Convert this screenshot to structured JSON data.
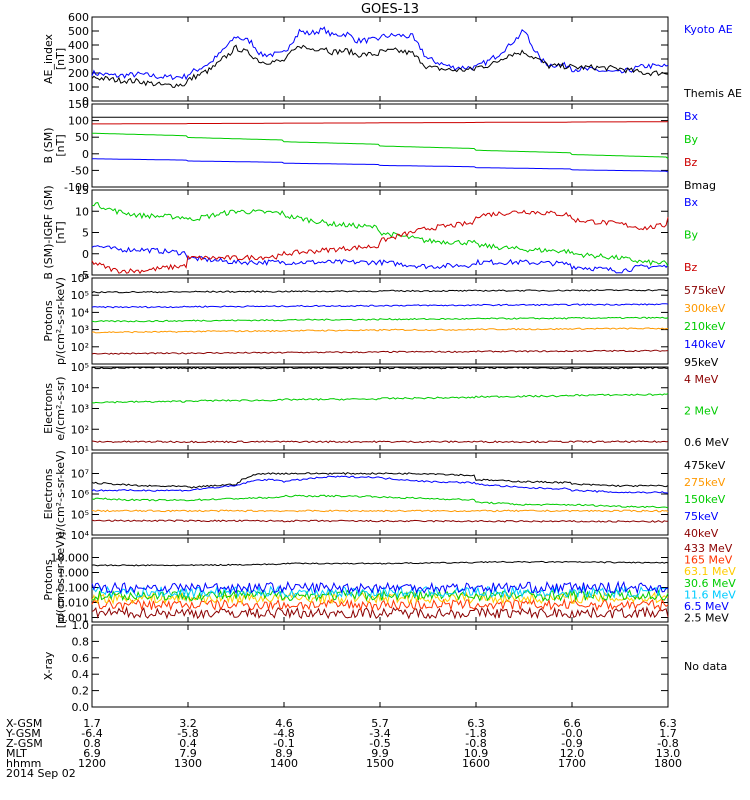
{
  "title": "GOES-13",
  "chart_data": [
    {
      "type": "line",
      "ylabel": [
        "AE_index",
        "[nT]"
      ],
      "ylim": [
        0,
        600
      ],
      "yscale": "linear",
      "yticks": [
        0,
        100,
        200,
        300,
        400,
        500,
        600
      ],
      "ytick_labels": [
        "0",
        "100",
        "200",
        "300",
        "400",
        "500",
        "600"
      ],
      "series": [
        {
          "name": "Kyoto AE",
          "color": "#0000ff",
          "x": [
            1200,
            1215,
            1230,
            1245,
            1300,
            1315,
            1330,
            1340,
            1345,
            1400,
            1410,
            1415,
            1425,
            1430,
            1440,
            1445,
            1500,
            1510,
            1520,
            1530,
            1545,
            1600,
            1610,
            1620,
            1630,
            1640,
            1645,
            1700,
            1715,
            1730,
            1745,
            1800
          ],
          "y": [
            200,
            180,
            190,
            170,
            190,
            280,
            460,
            420,
            330,
            350,
            500,
            480,
            510,
            470,
            480,
            430,
            460,
            470,
            460,
            300,
            240,
            240,
            300,
            390,
            500,
            300,
            260,
            230,
            220,
            200,
            250,
            240
          ]
        },
        {
          "name": "Themis AE",
          "color": "#000000",
          "x": [
            1200,
            1215,
            1230,
            1245,
            1300,
            1315,
            1330,
            1340,
            1345,
            1400,
            1410,
            1415,
            1425,
            1430,
            1440,
            1445,
            1500,
            1510,
            1520,
            1530,
            1545,
            1600,
            1610,
            1620,
            1630,
            1640,
            1645,
            1700,
            1715,
            1730,
            1745,
            1800
          ],
          "y": [
            170,
            150,
            140,
            110,
            150,
            230,
            380,
            330,
            280,
            290,
            400,
            370,
            380,
            350,
            360,
            330,
            350,
            360,
            340,
            240,
            220,
            240,
            260,
            330,
            350,
            290,
            250,
            240,
            240,
            230,
            200,
            200
          ]
        }
      ]
    },
    {
      "type": "line",
      "ylabel": [
        "B (SM)",
        "[nT]"
      ],
      "ylim": [
        -100,
        150
      ],
      "yscale": "linear",
      "yticks": [
        -100,
        -50,
        0,
        50,
        100,
        150
      ],
      "ytick_labels": [
        "-100",
        "-50",
        "0",
        "50",
        "100",
        "150"
      ],
      "series": [
        {
          "name": "Bx",
          "color": "#0000ff",
          "x": [
            1200,
            1800
          ],
          "y": [
            -15,
            -55
          ]
        },
        {
          "name": "By",
          "color": "#00cc00",
          "x": [
            1200,
            1800
          ],
          "y": [
            62,
            -15
          ]
        },
        {
          "name": "Bz",
          "color": "#cc0000",
          "x": [
            1200,
            1800
          ],
          "y": [
            90,
            97
          ]
        },
        {
          "name": "Bmag",
          "color": "#000000",
          "x": [
            1200,
            1800
          ],
          "y": [
            110,
            110
          ]
        }
      ]
    },
    {
      "type": "line",
      "ylabel": [
        "B (SM)-IGRF (SM)",
        "[nT]"
      ],
      "ylim": [
        -5,
        15
      ],
      "yscale": "linear",
      "yticks": [
        -5,
        0,
        5,
        10,
        15
      ],
      "ytick_labels": [
        "-5",
        "0",
        "5",
        "10",
        "15"
      ],
      "series": [
        {
          "name": "Bx",
          "color": "#0000ff",
          "x": [
            1200,
            1215,
            1230,
            1300,
            1330,
            1400,
            1430,
            1500,
            1530,
            1600,
            1630,
            1700,
            1730,
            1745,
            1800
          ],
          "y": [
            2,
            1,
            1,
            -1,
            -2,
            -2,
            -2,
            -2,
            -3,
            -2,
            -2,
            -3,
            -4,
            -3,
            -3
          ]
        },
        {
          "name": "By",
          "color": "#00cc00",
          "x": [
            1200,
            1215,
            1230,
            1300,
            1330,
            1400,
            1430,
            1500,
            1530,
            1600,
            1630,
            1700,
            1730,
            1745,
            1800
          ],
          "y": [
            12,
            10,
            9,
            8,
            10,
            9,
            7,
            5,
            3,
            2,
            1,
            0,
            -1,
            -2,
            -3
          ]
        },
        {
          "name": "Bz",
          "color": "#cc0000",
          "x": [
            1200,
            1215,
            1230,
            1300,
            1330,
            1400,
            1430,
            1500,
            1530,
            1600,
            1630,
            1700,
            1730,
            1745,
            1800
          ],
          "y": [
            -2,
            -4,
            -4,
            -1,
            -1,
            0,
            1,
            3,
            6,
            9,
            10,
            8,
            7,
            6,
            9
          ]
        }
      ]
    },
    {
      "type": "line",
      "ylabel": [
        "Protons",
        "p/(cm²-s-sr-keV)"
      ],
      "ylim": [
        10,
        1000000
      ],
      "yscale": "log",
      "yticks": [
        100,
        1000,
        10000,
        100000,
        1000000
      ],
      "ytick_labels": [
        "10²",
        "10³",
        "10⁴",
        "10⁵",
        "10⁶"
      ],
      "series": [
        {
          "name": "575keV",
          "color": "#8b0000",
          "x": [
            1200,
            1800
          ],
          "y": [
            40,
            60
          ]
        },
        {
          "name": "300keV",
          "color": "#ff9900",
          "x": [
            1200,
            1800
          ],
          "y": [
            700,
            1200
          ]
        },
        {
          "name": "210keV",
          "color": "#00cc00",
          "x": [
            1200,
            1800
          ],
          "y": [
            3000,
            5000
          ]
        },
        {
          "name": "140keV",
          "color": "#0000ff",
          "x": [
            1200,
            1800
          ],
          "y": [
            20000,
            30000
          ]
        },
        {
          "name": "95keV",
          "color": "#000000",
          "x": [
            1200,
            1800
          ],
          "y": [
            150000,
            200000
          ]
        }
      ]
    },
    {
      "type": "line",
      "ylabel": [
        "Electrons",
        "e/(cm²-s-sr)"
      ],
      "ylim": [
        10,
        100000
      ],
      "yscale": "log",
      "yticks": [
        10,
        100,
        1000,
        10000,
        100000
      ],
      "ytick_labels": [
        "10¹",
        "10²",
        "10³",
        "10⁴",
        "10⁵"
      ],
      "series": [
        {
          "name": "4 MeV",
          "color": "#8b0000",
          "x": [
            1200,
            1800
          ],
          "y": [
            25,
            25
          ]
        },
        {
          "name": "2 MeV",
          "color": "#00cc00",
          "x": [
            1200,
            1500,
            1800
          ],
          "y": [
            2000,
            3000,
            5000
          ]
        },
        {
          "name": "0.6 MeV",
          "color": "#000000",
          "x": [
            1200,
            1800
          ],
          "y": [
            90000,
            90000
          ]
        }
      ]
    },
    {
      "type": "line",
      "ylabel": [
        "Electrons",
        "e/(cm²-s-sr-keV)"
      ],
      "ylim": [
        10000,
        100000000
      ],
      "yscale": "log",
      "yticks": [
        10000,
        100000,
        1000000,
        10000000
      ],
      "ytick_labels": [
        "10⁴",
        "10⁵",
        "10⁶",
        "10⁷"
      ],
      "series": [
        {
          "name": "475keV",
          "color": "#000000",
          "x": [
            1200,
            1230,
            1300,
            1330,
            1345,
            1400,
            1430,
            1500,
            1530,
            1600,
            1630,
            1700,
            1730,
            1800
          ],
          "y": [
            3500000,
            2500000,
            2000000,
            3000000,
            10000000,
            10000000,
            10000000,
            10000000,
            10000000,
            5000000,
            4000000,
            3000000,
            2500000,
            2500000
          ]
        },
        {
          "name": "275keV",
          "color": "#ff9900",
          "x": [
            1200,
            1800
          ],
          "y": [
            150000,
            150000
          ]
        },
        {
          "name": "150keV",
          "color": "#00cc00",
          "x": [
            1200,
            1230,
            1300,
            1330,
            1400,
            1430,
            1500,
            1530,
            1600,
            1630,
            1700,
            1730,
            1800
          ],
          "y": [
            600000,
            500000,
            500000,
            600000,
            800000,
            800000,
            700000,
            600000,
            400000,
            300000,
            300000,
            250000,
            200000
          ]
        },
        {
          "name": "75keV",
          "color": "#0000ff",
          "x": [
            1200,
            1230,
            1300,
            1330,
            1345,
            1400,
            1430,
            1500,
            1530,
            1600,
            1630,
            1700,
            1730,
            1800
          ],
          "y": [
            1500000,
            1500000,
            1500000,
            2500000,
            5000000,
            4000000,
            7000000,
            6000000,
            4000000,
            3000000,
            2000000,
            1500000,
            1200000,
            1200000
          ]
        },
        {
          "name": "40keV",
          "color": "#8b0000",
          "x": [
            1200,
            1800
          ],
          "y": [
            50000,
            45000
          ]
        }
      ]
    },
    {
      "type": "line",
      "ylabel": [
        "Protons",
        "[p/(cm²-s-sr-keV)]"
      ],
      "ylim": [
        0.0005,
        200
      ],
      "yscale": "log",
      "yticks": [
        0.001,
        0.01,
        0.1,
        1,
        10
      ],
      "ytick_labels": [
        "0.001",
        "0.010",
        "0.100",
        "1.000",
        "10.000"
      ],
      "series": [
        {
          "name": "433 MeV",
          "color": "#8b0000",
          "x": [
            1200,
            1800
          ],
          "y": [
            0.002,
            0.002
          ]
        },
        {
          "name": "165 MeV",
          "color": "#ff3300",
          "x": [
            1200,
            1800
          ],
          "y": [
            0.007,
            0.007
          ]
        },
        {
          "name": "63.1 MeV",
          "color": "#ffcc00",
          "x": [
            1200,
            1800
          ],
          "y": [
            0.02,
            0.02
          ]
        },
        {
          "name": "30.6 MeV",
          "color": "#00cc00",
          "x": [
            1200,
            1800
          ],
          "y": [
            0.03,
            0.03
          ]
        },
        {
          "name": "11.6 MeV",
          "color": "#00ccff",
          "x": [
            1200,
            1800
          ],
          "y": [
            0.05,
            0.05
          ]
        },
        {
          "name": "6.5 MeV",
          "color": "#0000ff",
          "x": [
            1200,
            1800
          ],
          "y": [
            0.1,
            0.1
          ]
        },
        {
          "name": "2.5 MeV",
          "color": "#000000",
          "x": [
            1200,
            1300,
            1400,
            1500,
            1600,
            1700,
            1800
          ],
          "y": [
            3,
            3,
            4,
            4,
            5,
            5,
            4
          ]
        }
      ]
    },
    {
      "type": "line",
      "ylabel": [
        "X-ray",
        ""
      ],
      "ylim": [
        0,
        1
      ],
      "yscale": "linear",
      "yticks": [
        0,
        0.2,
        0.4,
        0.6,
        0.8,
        1.0
      ],
      "ytick_labels": [
        "0.0",
        "0.2",
        "0.4",
        "0.6",
        "0.8",
        "1.0"
      ],
      "series": [],
      "note": "No data"
    }
  ],
  "axis": {
    "xlim": [
      1200,
      1800
    ],
    "xticks": [
      1200,
      1300,
      1400,
      1500,
      1600,
      1700,
      1800
    ],
    "rows": [
      {
        "label": "X-GSM",
        "values": [
          "1.7",
          "3.2",
          "4.6",
          "5.7",
          "6.3",
          "6.6",
          "6.3"
        ]
      },
      {
        "label": "Y-GSM",
        "values": [
          "-6.4",
          "-5.8",
          "-4.8",
          "-3.4",
          "-1.8",
          "-0.0",
          "1.7"
        ]
      },
      {
        "label": "Z-GSM",
        "values": [
          "0.8",
          "0.4",
          "-0.1",
          "-0.5",
          "-0.8",
          "-0.9",
          "-0.8"
        ]
      },
      {
        "label": "MLT",
        "values": [
          "6.9",
          "7.9",
          "8.9",
          "9.9",
          "10.9",
          "12.0",
          "13.0"
        ]
      },
      {
        "label": "hhmm",
        "values": [
          "1200",
          "1300",
          "1400",
          "1500",
          "1600",
          "1700",
          "1800"
        ]
      }
    ],
    "date": "2014 Sep 02"
  }
}
